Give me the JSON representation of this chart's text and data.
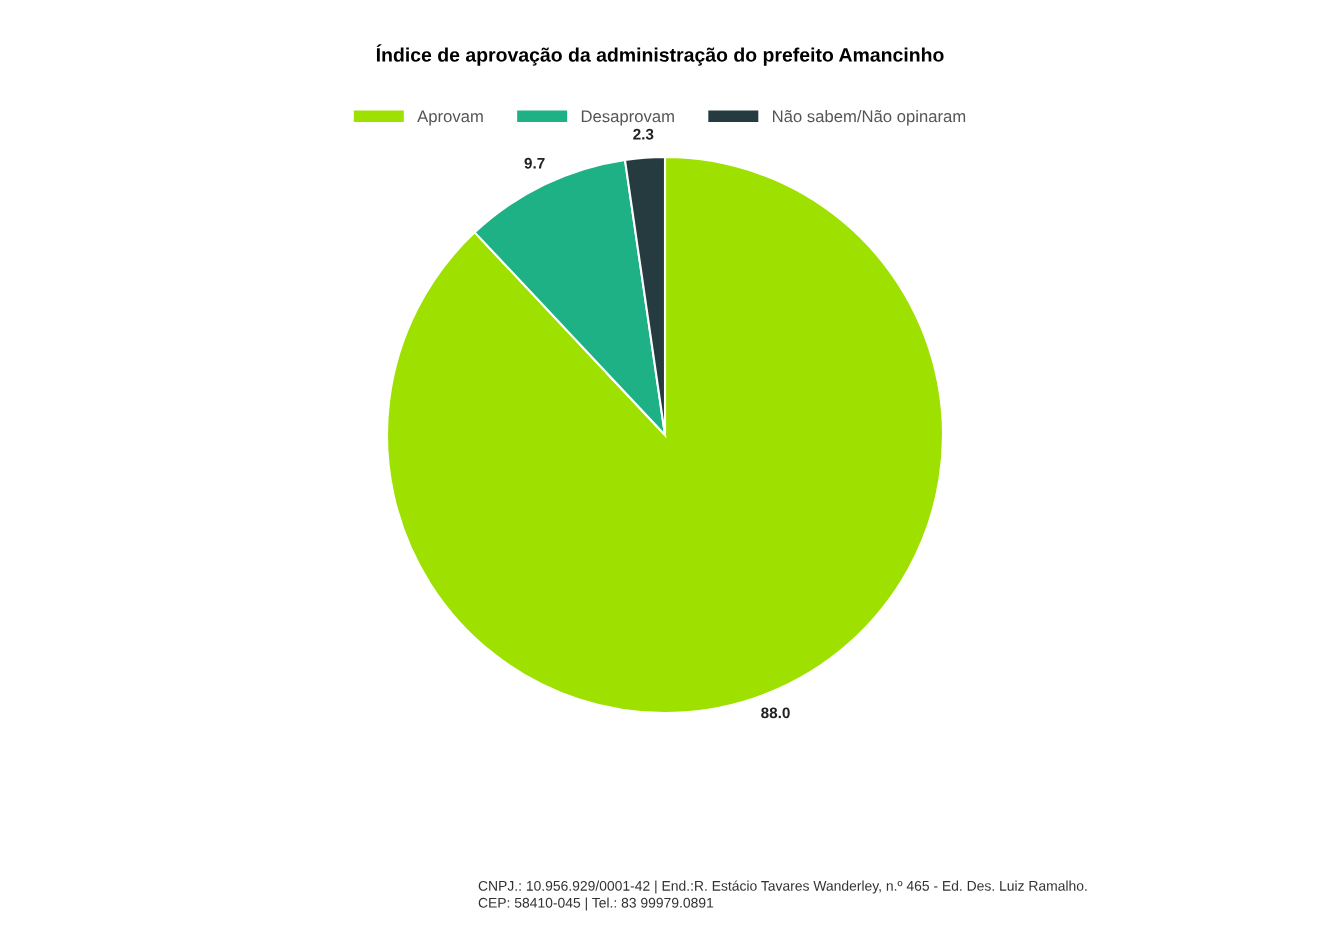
{
  "chart_data": {
    "type": "pie",
    "title": "Índice de aprovação da administração do prefeito Amancinho",
    "categories": [
      "Aprovam",
      "Desaprovam",
      "Não sabem/Não opinaram"
    ],
    "values": [
      88.0,
      9.7,
      2.3
    ],
    "value_labels": [
      "88.0",
      "9.7",
      "2.3"
    ],
    "colors": [
      "#9ee000",
      "#1db185",
      "#263b40"
    ],
    "legend": "top",
    "annotations": [
      "CNPJ.: 10.956.929/0001-42 | End.:R. Estácio Tavares Wanderley, n.º 465 - Ed. Des. Luiz Ramalho.",
      "CEP: 58410-045 | Tel.: 83 99979.0891"
    ]
  }
}
